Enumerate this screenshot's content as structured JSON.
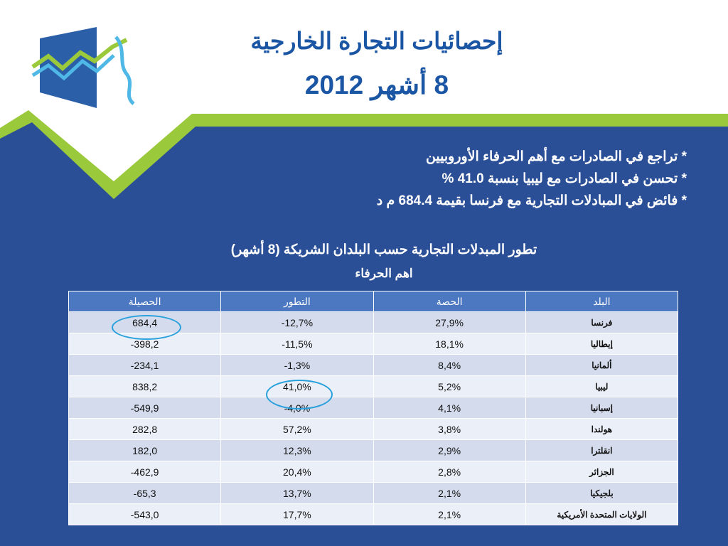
{
  "colors": {
    "accent_blue": "#1b56a4",
    "background_blue": "#2b4f97",
    "accent_green": "#9bc93c",
    "header_blue": "#4c78c2",
    "highlight_circle": "#27a0dc"
  },
  "logo": {
    "icon": "statistics-chart-logo-icon"
  },
  "title": {
    "line1": "إحصائيات التجارة الخارجية",
    "line2": "8 أشهر 2012"
  },
  "bullets": [
    "* تراجع في الصادرات مع أهم الحرفاء الأوروبيين",
    "* تحسن في الصادرات مع ليبيا بنسبة 41.0 %",
    "* فائض في المبادلات التجارية مع فرنسا بقيمة 684.4 م د"
  ],
  "subtitle": {
    "line1": "تطور المبدلات التجارية  حسب البلدان الشريكة (8 أشهر)",
    "line2": "اهم الحرفاء"
  },
  "table": {
    "headers": {
      "country": "البلد",
      "share": "الحصة",
      "growth": "التطور",
      "balance": "الحصيلة"
    },
    "rows": [
      {
        "country": "فرنسا",
        "share": "27,9%",
        "growth": "-12,7%",
        "balance": "684,4"
      },
      {
        "country": "إيطاليا",
        "share": "18,1%",
        "growth": "-11,5%",
        "balance": "-398,2"
      },
      {
        "country": "ألمانيا",
        "share": "8,4%",
        "growth": "-1,3%",
        "balance": "-234,1"
      },
      {
        "country": "ليبيا",
        "share": "5,2%",
        "growth": "41,0%",
        "balance": "838,2"
      },
      {
        "country": "إسبانيا",
        "share": "4,1%",
        "growth": "-4,0%",
        "balance": "-549,9"
      },
      {
        "country": "هولندا",
        "share": "3,8%",
        "growth": "57,2%",
        "balance": "282,8"
      },
      {
        "country": "انقلترا",
        "share": "2,9%",
        "growth": "12,3%",
        "balance": "182,0"
      },
      {
        "country": "الجزائر",
        "share": "2,8%",
        "growth": "20,4%",
        "balance": "-462,9"
      },
      {
        "country": "بلجيكيا",
        "share": "2,1%",
        "growth": "13,7%",
        "balance": "-65,3"
      },
      {
        "country": "الولايات المتحدة الأمريكية",
        "share": "2,1%",
        "growth": "17,7%",
        "balance": "-543,0"
      }
    ]
  }
}
